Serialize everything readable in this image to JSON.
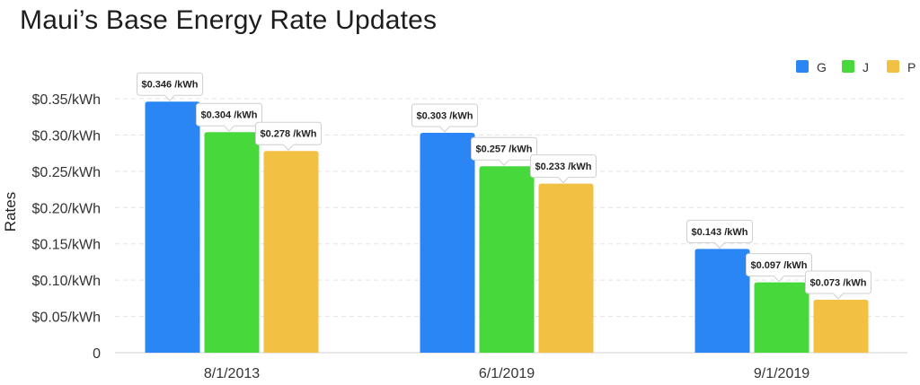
{
  "chart_data": {
    "type": "bar",
    "title": "Maui’s Base Energy Rate Updates",
    "ylabel": "Rates",
    "xlabel": "",
    "categories": [
      "8/1/2013",
      "6/1/2019",
      "9/1/2019"
    ],
    "series": [
      {
        "name": "G",
        "color": "#2986f4",
        "values": [
          0.346,
          0.303,
          0.143
        ],
        "labels": [
          "$0.346 /kWh",
          "$0.303 /kWh",
          "$0.143 /kWh"
        ]
      },
      {
        "name": "J",
        "color": "#47d93b",
        "values": [
          0.304,
          0.257,
          0.097
        ],
        "labels": [
          "$0.304 /kWh",
          "$0.257 /kWh",
          "$0.097 /kWh"
        ]
      },
      {
        "name": "P",
        "color": "#f2c043",
        "values": [
          0.278,
          0.233,
          0.073
        ],
        "labels": [
          "$0.278 /kWh",
          "$0.233 /kWh",
          "$0.073 /kWh"
        ]
      }
    ],
    "ylim": [
      0,
      0.35
    ],
    "yticks": [
      0,
      0.05,
      0.1,
      0.15,
      0.2,
      0.25,
      0.3,
      0.35
    ],
    "ytick_labels": [
      "0",
      "$0.05/kWh",
      "$0.10/kWh",
      "$0.15/kWh",
      "$0.20/kWh",
      "$0.25/kWh",
      "$0.30/kWh",
      "$0.35/kWh"
    ],
    "grid": true,
    "legend_position": "top-right"
  }
}
